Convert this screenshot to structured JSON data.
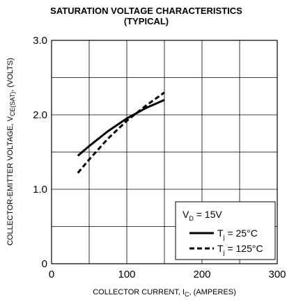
{
  "chart_data": {
    "type": "line",
    "title": "SATURATION VOLTAGE CHARACTERISTICS",
    "subtitle": "(TYPICAL)",
    "xlabel": {
      "text": "COLLECTOR CURRENT, I",
      "sub": "C",
      "suffix": ", (AMPERES)"
    },
    "ylabel": {
      "text": "COLLECTOR-EMITTER VOLTAGE, V",
      "sub": "CE(SAT)",
      "suffix": ", (VOLTS)"
    },
    "xlim": [
      0,
      300
    ],
    "ylim": [
      0,
      3.0
    ],
    "x_ticks": [
      0,
      50,
      100,
      150,
      200,
      250,
      300
    ],
    "x_tick_labels": [
      "0",
      "",
      "100",
      "",
      "200",
      "",
      "300"
    ],
    "y_ticks": [
      0,
      0.5,
      1.0,
      1.5,
      2.0,
      2.5,
      3.0
    ],
    "y_tick_labels": [
      "0",
      "",
      "1.0",
      "",
      "2.0",
      "",
      "3.0"
    ],
    "grid": true,
    "legend_position": "bottom-right",
    "legend_header": {
      "text": "V",
      "sub": "D",
      "suffix": " = 15V"
    },
    "series": [
      {
        "name": {
          "text": "T",
          "sub": "j",
          "suffix": " = 25°C"
        },
        "style": "solid",
        "x": [
          35,
          50,
          75,
          100,
          125,
          150
        ],
        "y": [
          1.45,
          1.58,
          1.78,
          1.95,
          2.09,
          2.2
        ]
      },
      {
        "name": {
          "text": "T",
          "sub": "j",
          "suffix": " = 125°C"
        },
        "style": "dashed",
        "x": [
          35,
          50,
          75,
          100,
          125,
          150
        ],
        "y": [
          1.22,
          1.4,
          1.68,
          1.92,
          2.12,
          2.3
        ]
      }
    ]
  }
}
